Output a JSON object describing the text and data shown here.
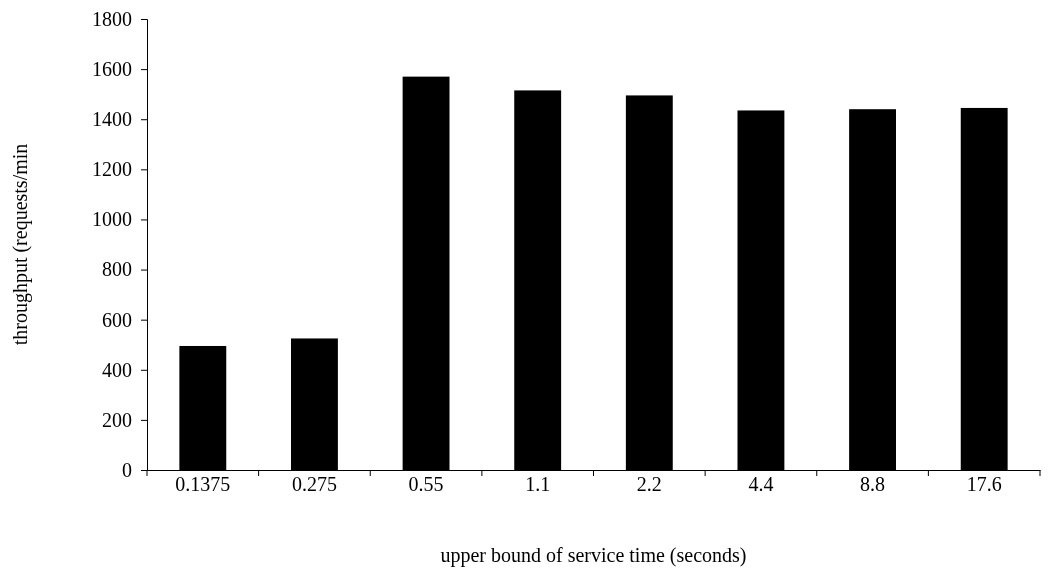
{
  "chart_data": {
    "type": "bar",
    "xlabel": "upper bound of service time (seconds)",
    "ylabel": "throughput (requests/min",
    "categories": [
      "0.1375",
      "0.275",
      "0.55",
      "1.1",
      "2.2",
      "4.4",
      "8.8",
      "17.6"
    ],
    "values": [
      495,
      525,
      1570,
      1515,
      1495,
      1435,
      1440,
      1445
    ],
    "color": "#000000",
    "ylim": [
      0,
      1800
    ],
    "yticks": [
      0,
      200,
      400,
      600,
      800,
      1000,
      1200,
      1400,
      1600,
      1800
    ],
    "grid": false
  }
}
